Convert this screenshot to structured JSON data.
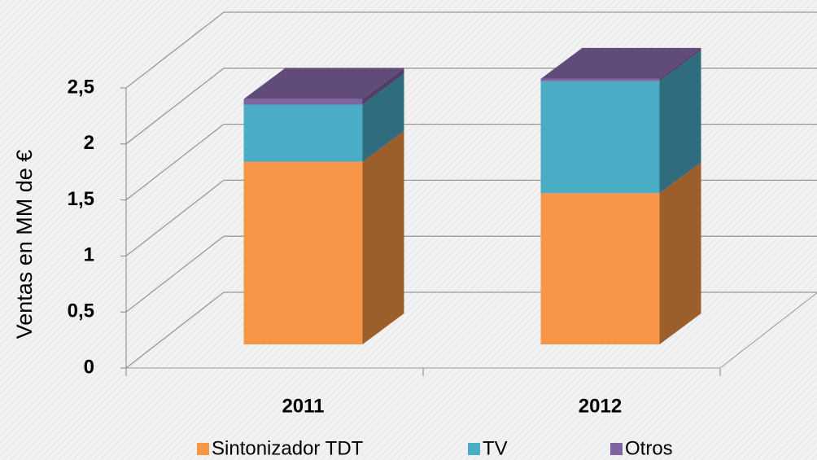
{
  "chart_data": {
    "type": "bar",
    "stacked": true,
    "y_label": "Ventas en MM de €",
    "categories": [
      "2011",
      "2012"
    ],
    "series": [
      {
        "name": "Sintonizador TDT",
        "color": "#f79646",
        "values": [
          1.63,
          1.35
        ]
      },
      {
        "name": "TV",
        "color": "#4bacc6",
        "values": [
          0.51,
          1.0
        ]
      },
      {
        "name": "Otros",
        "color": "#8064a2",
        "values": [
          0.05,
          0.02
        ]
      }
    ],
    "ylim": [
      0,
      2.5
    ],
    "yticks": [
      0,
      {
        "value": 0.5,
        "label": "0,5"
      },
      1,
      {
        "value": 1.5,
        "label": "1,5"
      },
      2,
      {
        "value": 2.5,
        "label": "2,5"
      }
    ],
    "grid": true,
    "legend": "bottom"
  }
}
